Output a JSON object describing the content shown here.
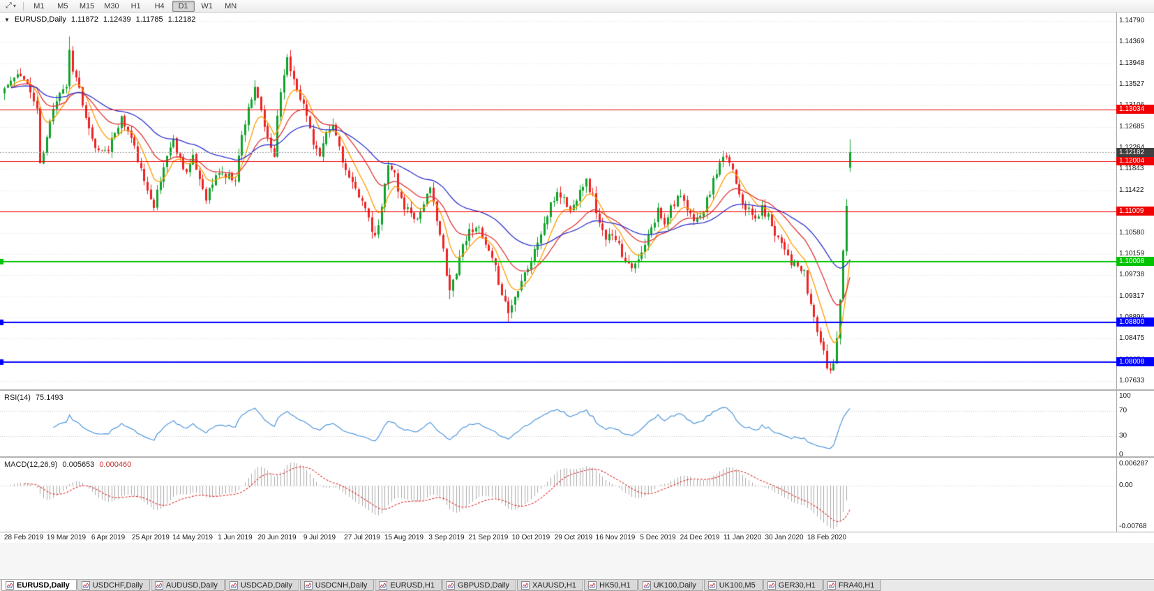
{
  "toolbar": {
    "tool_icon": "⤢",
    "dropdown_icon": "▾",
    "timeframes": [
      "M1",
      "M5",
      "M15",
      "M30",
      "H1",
      "H4",
      "D1",
      "W1",
      "MN"
    ],
    "active_timeframe": "D1"
  },
  "chart": {
    "collapse_icon": "▼",
    "title": "EURUSD,Daily",
    "ohlc": {
      "open": "1.11872",
      "high": "1.12439",
      "low": "1.11785",
      "close": "1.12182"
    }
  },
  "rsi": {
    "label": "RSI(14)",
    "value": "75.1493"
  },
  "macd": {
    "label": "MACD(12,26,9)",
    "value_main": "0.005653",
    "value_signal": "0.000460"
  },
  "tabs": [
    {
      "label": "EURUSD,Daily",
      "active": true
    },
    {
      "label": "USDCHF,Daily",
      "active": false
    },
    {
      "label": "AUDUSD,Daily",
      "active": false
    },
    {
      "label": "USDCAD,Daily",
      "active": false
    },
    {
      "label": "USDCNH,Daily",
      "active": false
    },
    {
      "label": "EURUSD,H1",
      "active": false
    },
    {
      "label": "GBPUSD,Daily",
      "active": false
    },
    {
      "label": "XAUUSD,H1",
      "active": false
    },
    {
      "label": "HK50,H1",
      "active": false
    },
    {
      "label": "UK100,Daily",
      "active": false
    },
    {
      "label": "UK100,M5",
      "active": false
    },
    {
      "label": "GER30,H1",
      "active": false
    },
    {
      "label": "FRA40,H1",
      "active": false
    }
  ],
  "chart_data": {
    "type": "candlestick",
    "symbol": "EURUSD",
    "timeframe": "Daily",
    "current_bar": {
      "open": 1.11872,
      "high": 1.12439,
      "low": 1.11785,
      "close": 1.12182
    },
    "y_tick_labels": [
      "1.14790",
      "1.14369",
      "1.13948",
      "1.13527",
      "1.13106",
      "1.12685",
      "1.12264",
      "1.11843",
      "1.11422",
      "1.11001",
      "1.10580",
      "1.10159",
      "1.09738",
      "1.09317",
      "1.08896",
      "1.08475",
      "1.08054",
      "1.07633"
    ],
    "x_tick_labels": [
      "28 Feb 2019",
      "19 Mar 2019",
      "6 Apr 2019",
      "25 Apr 2019",
      "14 May 2019",
      "1 Jun 2019",
      "20 Jun 2019",
      "9 Jul 2019",
      "27 Jul 2019",
      "15 Aug 2019",
      "3 Sep 2019",
      "21 Sep 2019",
      "10 Oct 2019",
      "29 Oct 2019",
      "16 Nov 2019",
      "5 Dec 2019",
      "24 Dec 2019",
      "11 Jan 2020",
      "30 Jan 2020",
      "18 Feb 2020"
    ],
    "horizontal_lines": [
      {
        "price": 1.13034,
        "label": "1.13034",
        "color": "#f00000",
        "width": 1
      },
      {
        "price": 1.12004,
        "label": "1.12004",
        "color": "#f00000",
        "width": 1
      },
      {
        "price": 1.11009,
        "label": "1.11009",
        "color": "#f00000",
        "width": 1
      },
      {
        "price": 1.10008,
        "label": "1.10008",
        "color": "#00c300",
        "width": 2
      },
      {
        "price": 1.088,
        "label": "1.08800",
        "color": "#0000ff",
        "width": 2
      },
      {
        "price": 1.08008,
        "label": "1.08008",
        "color": "#0000ff",
        "width": 2
      }
    ],
    "bid_line": {
      "price": 1.12182,
      "label": "1.12182",
      "box_color": "#3f3f3f",
      "line_color": "#9a9a9a"
    },
    "moving_averages": [
      {
        "period": 8,
        "color": "#ff9c00"
      },
      {
        "period": 20,
        "color": "#e03434"
      },
      {
        "period": 45,
        "color": "#2d32cc"
      }
    ],
    "candle_colors": {
      "up": "#0fa32c",
      "down": "#ee2222"
    },
    "grid_color": "#e3e3e3",
    "bars_total": 261,
    "price_path_anchors": [
      [
        0,
        1.1345
      ],
      [
        3,
        1.1365
      ],
      [
        6,
        1.137
      ],
      [
        8,
        1.1335
      ],
      [
        10,
        1.1305
      ],
      [
        11,
        1.119
      ],
      [
        13,
        1.1245
      ],
      [
        15,
        1.131
      ],
      [
        17,
        1.134
      ],
      [
        19,
        1.135
      ],
      [
        20,
        1.142
      ],
      [
        21,
        1.1385
      ],
      [
        23,
        1.1345
      ],
      [
        25,
        1.128
      ],
      [
        27,
        1.124
      ],
      [
        29,
        1.122
      ],
      [
        31,
        1.123
      ],
      [
        32,
        1.1216
      ],
      [
        34,
        1.126
      ],
      [
        36,
        1.1285
      ],
      [
        39,
        1.1245
      ],
      [
        41,
        1.1205
      ],
      [
        43,
        1.1155
      ],
      [
        45,
        1.1133
      ],
      [
        46,
        1.1115
      ],
      [
        48,
        1.116
      ],
      [
        50,
        1.1215
      ],
      [
        52,
        1.124
      ],
      [
        54,
        1.1205
      ],
      [
        56,
        1.118
      ],
      [
        58,
        1.1204
      ],
      [
        60,
        1.1165
      ],
      [
        62,
        1.113
      ],
      [
        64,
        1.1155
      ],
      [
        66,
        1.118
      ],
      [
        68,
        1.117
      ],
      [
        71,
        1.1168
      ],
      [
        73,
        1.125
      ],
      [
        75,
        1.131
      ],
      [
        77,
        1.134
      ],
      [
        79,
        1.13
      ],
      [
        81,
        1.124
      ],
      [
        83,
        1.121
      ],
      [
        84,
        1.1294
      ],
      [
        86,
        1.138
      ],
      [
        87,
        1.14
      ],
      [
        89,
        1.1365
      ],
      [
        91,
        1.133
      ],
      [
        93,
        1.129
      ],
      [
        95,
        1.124
      ],
      [
        97,
        1.1208
      ],
      [
        99,
        1.125
      ],
      [
        101,
        1.127
      ],
      [
        103,
        1.123
      ],
      [
        105,
        1.118
      ],
      [
        107,
        1.115
      ],
      [
        109,
        1.1135
      ],
      [
        110,
        1.1128
      ],
      [
        112,
        1.108
      ],
      [
        114,
        1.1045
      ],
      [
        116,
        1.1105
      ],
      [
        118,
        1.12
      ],
      [
        120,
        1.1175
      ],
      [
        121,
        1.114
      ],
      [
        123,
        1.1109
      ],
      [
        125,
        1.11
      ],
      [
        127,
        1.1085
      ],
      [
        129,
        1.112
      ],
      [
        131,
        1.114
      ],
      [
        133,
        1.109
      ],
      [
        135,
        1.102
      ],
      [
        136,
        1.0971
      ],
      [
        137,
        1.094
      ],
      [
        139,
        1.0985
      ],
      [
        141,
        1.1035
      ],
      [
        143,
        1.106
      ],
      [
        145,
        1.1075
      ],
      [
        147,
        1.1045
      ],
      [
        149,
        1.1016
      ],
      [
        151,
        1.0985
      ],
      [
        153,
        1.094
      ],
      [
        155,
        1.09
      ],
      [
        157,
        1.093
      ],
      [
        159,
        1.097
      ],
      [
        161,
        1.099
      ],
      [
        162,
        1.1003
      ],
      [
        164,
        1.104
      ],
      [
        166,
        1.1075
      ],
      [
        168,
        1.111
      ],
      [
        170,
        1.114
      ],
      [
        172,
        1.1125
      ],
      [
        174,
        1.11
      ],
      [
        175,
        1.1111
      ],
      [
        177,
        1.115
      ],
      [
        179,
        1.116
      ],
      [
        181,
        1.113
      ],
      [
        183,
        1.1075
      ],
      [
        185,
        1.104
      ],
      [
        187,
        1.106
      ],
      [
        188,
        1.1051
      ],
      [
        190,
        1.1015
      ],
      [
        192,
        1.1
      ],
      [
        194,
        1.099
      ],
      [
        196,
        1.1015
      ],
      [
        198,
        1.105
      ],
      [
        200,
        1.108
      ],
      [
        201,
        1.1103
      ],
      [
        203,
        1.108
      ],
      [
        205,
        1.111
      ],
      [
        207,
        1.113
      ],
      [
        209,
        1.1115
      ],
      [
        211,
        1.109
      ],
      [
        214,
        1.1087
      ],
      [
        216,
        1.112
      ],
      [
        218,
        1.116
      ],
      [
        220,
        1.119
      ],
      [
        222,
        1.121
      ],
      [
        224,
        1.1185
      ],
      [
        226,
        1.114
      ],
      [
        227,
        1.1122
      ],
      [
        229,
        1.11
      ],
      [
        231,
        1.1085
      ],
      [
        233,
        1.1105
      ],
      [
        235,
        1.109
      ],
      [
        237,
        1.106
      ],
      [
        239,
        1.104
      ],
      [
        240,
        1.1031
      ],
      [
        242,
        1.1
      ],
      [
        244,
        1.099
      ],
      [
        246,
        1.0975
      ],
      [
        247,
        1.094
      ],
      [
        249,
        1.089
      ],
      [
        251,
        1.084
      ],
      [
        253,
        1.0792
      ],
      [
        254,
        1.0785
      ],
      [
        255,
        1.08
      ],
      [
        256,
        1.0855
      ],
      [
        257,
        1.093
      ],
      [
        258,
        1.102
      ],
      [
        259,
        1.112
      ],
      [
        260,
        1.1218
      ]
    ],
    "wick_overrides": {
      "highs": {
        "20": 1.1448,
        "260": 1.12439
      },
      "lows": {
        "137": 1.0926,
        "155": 1.0879,
        "254": 1.0778,
        "260": 1.11785
      }
    },
    "indicators": {
      "rsi": {
        "period": 14,
        "value": 75.1493,
        "color": "#4f97dd",
        "levels": [
          70,
          30
        ],
        "range": [
          0,
          100
        ],
        "axis_labels": [
          "100",
          "70",
          "30",
          "0"
        ]
      },
      "macd": {
        "fast": 12,
        "slow": 26,
        "signal_period": 9,
        "value": 0.005653,
        "signal_value": 0.00046,
        "hist_color": "#ababab",
        "signal_color": "#e03030",
        "axis_labels": {
          "top": "0.006287",
          "zero": "0.00",
          "bottom": "-0.00768"
        }
      }
    }
  }
}
